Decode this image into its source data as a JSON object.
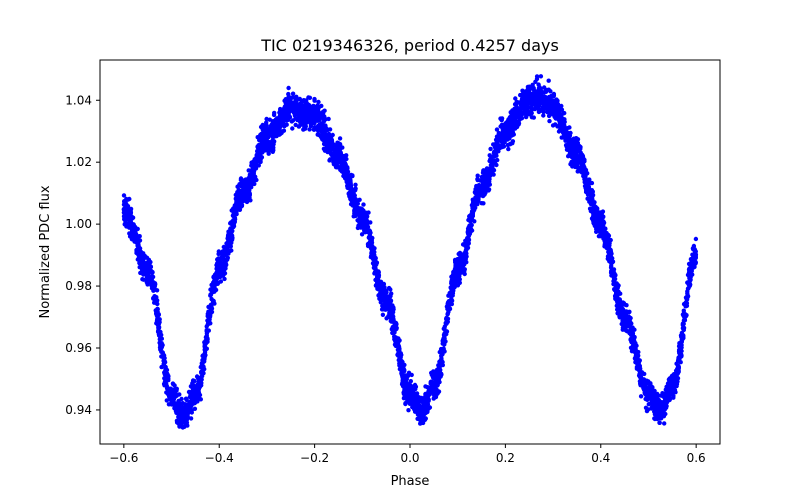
{
  "chart_data": {
    "type": "scatter",
    "title": "TIC 0219346326, period 0.4257 days",
    "xlabel": "Phase",
    "ylabel": "Normalized PDC flux",
    "xlim": [
      -0.65,
      0.65
    ],
    "ylim": [
      0.929,
      1.053
    ],
    "xticks": [
      -0.6,
      -0.4,
      -0.2,
      0.0,
      0.2,
      0.4,
      0.6
    ],
    "xtick_labels": [
      "−0.6",
      "−0.4",
      "−0.2",
      "0.0",
      "0.2",
      "0.4",
      "0.6"
    ],
    "yticks": [
      0.94,
      0.96,
      0.98,
      1.0,
      1.02,
      1.04
    ],
    "ytick_labels": [
      "0.94",
      "0.96",
      "0.98",
      "1.00",
      "1.02",
      "1.04"
    ],
    "grid": false,
    "series": [
      {
        "name": "PDC flux",
        "color": "#0000ff",
        "description_points": [
          {
            "x": -0.6,
            "y": 1.005
          },
          {
            "x": -0.55,
            "y": 0.985
          },
          {
            "x": -0.5,
            "y": 0.945
          },
          {
            "x": -0.475,
            "y": 0.938
          },
          {
            "x": -0.45,
            "y": 0.945
          },
          {
            "x": -0.4,
            "y": 0.985
          },
          {
            "x": -0.35,
            "y": 1.01
          },
          {
            "x": -0.3,
            "y": 1.028
          },
          {
            "x": -0.25,
            "y": 1.037
          },
          {
            "x": -0.2,
            "y": 1.035
          },
          {
            "x": -0.15,
            "y": 1.022
          },
          {
            "x": -0.1,
            "y": 1.002
          },
          {
            "x": -0.05,
            "y": 0.975
          },
          {
            "x": 0.0,
            "y": 0.945
          },
          {
            "x": 0.025,
            "y": 0.94
          },
          {
            "x": 0.05,
            "y": 0.948
          },
          {
            "x": 0.1,
            "y": 0.985
          },
          {
            "x": 0.15,
            "y": 1.012
          },
          {
            "x": 0.2,
            "y": 1.03
          },
          {
            "x": 0.25,
            "y": 1.04
          },
          {
            "x": 0.275,
            "y": 1.041
          },
          {
            "x": 0.3,
            "y": 1.038
          },
          {
            "x": 0.35,
            "y": 1.022
          },
          {
            "x": 0.4,
            "y": 1.0
          },
          {
            "x": 0.45,
            "y": 0.97
          },
          {
            "x": 0.5,
            "y": 0.945
          },
          {
            "x": 0.525,
            "y": 0.94
          },
          {
            "x": 0.55,
            "y": 0.948
          },
          {
            "x": 0.6,
            "y": 0.99
          }
        ],
        "scatter_half_width": 0.006,
        "point_count": 5000
      }
    ]
  }
}
